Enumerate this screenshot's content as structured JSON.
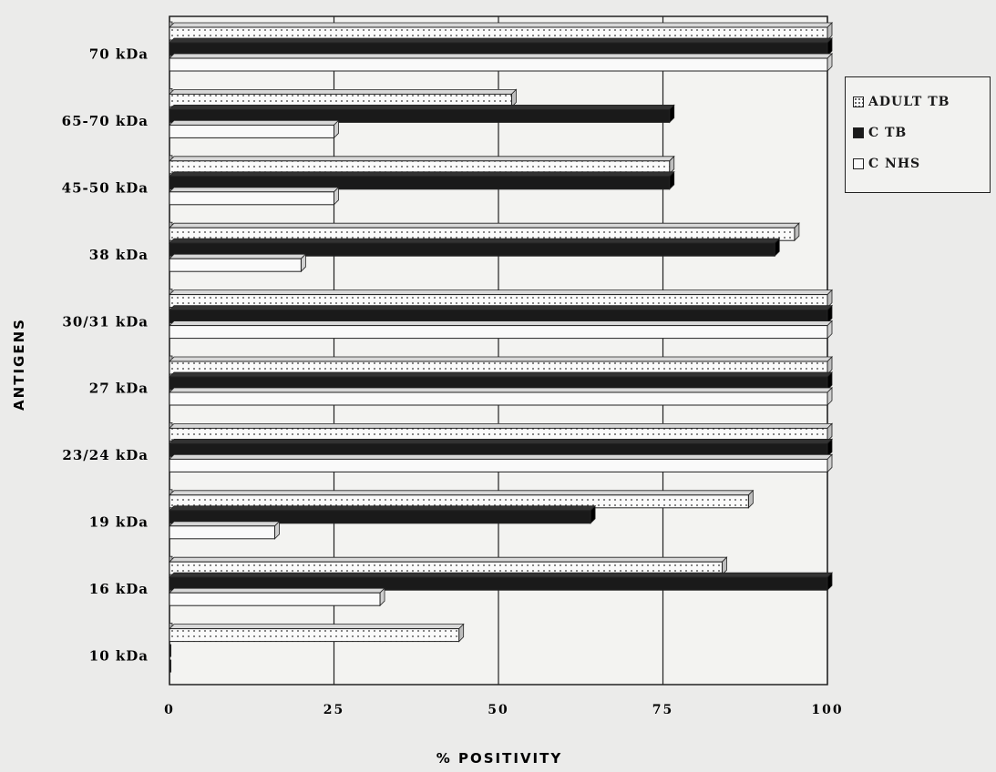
{
  "chart_data": {
    "type": "bar",
    "orientation": "horizontal",
    "categories": [
      "70 kDa",
      "65-70 kDa",
      "45-50 kDa",
      "38 kDa",
      "30/31 kDa",
      "27 kDa",
      "23/24 kDa",
      "19 kDa",
      "16 kDa",
      "10 kDa"
    ],
    "series": [
      {
        "name": "ADULT TB",
        "pattern": "dotted",
        "values": [
          100,
          52,
          76,
          95,
          100,
          100,
          100,
          88,
          84,
          44
        ]
      },
      {
        "name": "C TB",
        "pattern": "solid",
        "values": [
          100,
          76,
          76,
          92,
          100,
          100,
          100,
          64,
          100,
          0
        ]
      },
      {
        "name": "C NHS",
        "pattern": "white",
        "values": [
          100,
          25,
          25,
          20,
          100,
          100,
          100,
          16,
          32,
          0
        ]
      }
    ],
    "xlabel": "% POSITIVITY",
    "ylabel": "ANTIGENS",
    "xlim": [
      0,
      100
    ],
    "xticks": [
      0,
      25,
      50,
      75,
      100
    ],
    "grid": "vertical",
    "legend_position": "right",
    "colors": {
      "solid": "#1a1a1a",
      "dot": "#333333",
      "white": "#fafafa",
      "background": "#ebebea"
    }
  }
}
